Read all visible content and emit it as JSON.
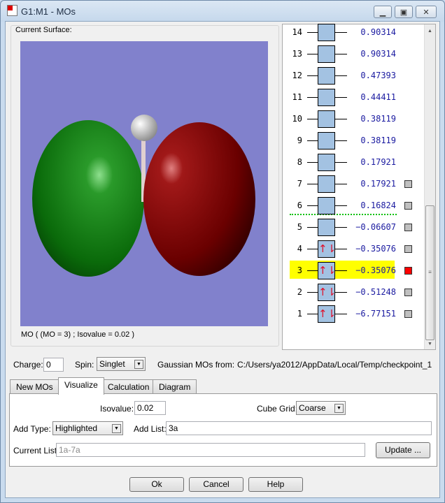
{
  "window": {
    "title": "G1:M1 - MOs",
    "icon": "gaussview-app-icon"
  },
  "surface": {
    "group_label": "Current Surface:",
    "caption": "MO ( (MO = 3) ; Isovalue = 0.02 )",
    "background_color": "#8181cc",
    "positive_lobe_color": "#8b0000",
    "negative_lobe_color": "#0a6a0a"
  },
  "orbitals": [
    {
      "num": "14",
      "energy": "0.90314",
      "occupied": false,
      "checkbox": false
    },
    {
      "num": "13",
      "energy": "0.90314",
      "occupied": false,
      "checkbox": false
    },
    {
      "num": "12",
      "energy": "0.47393",
      "occupied": false,
      "checkbox": false
    },
    {
      "num": "11",
      "energy": "0.44411",
      "occupied": false,
      "checkbox": false
    },
    {
      "num": "10",
      "energy": "0.38119",
      "occupied": false,
      "checkbox": false
    },
    {
      "num": "9",
      "energy": "0.38119",
      "occupied": false,
      "checkbox": false
    },
    {
      "num": "8",
      "energy": "0.17921",
      "occupied": false,
      "checkbox": false
    },
    {
      "num": "7",
      "energy": "0.17921",
      "occupied": false,
      "checkbox": true
    },
    {
      "num": "6",
      "energy": "0.16824",
      "occupied": false,
      "checkbox": true
    },
    {
      "num": "5",
      "energy": "−0.06607",
      "occupied": false,
      "checkbox": true
    },
    {
      "num": "4",
      "energy": "−0.35076",
      "occupied": true,
      "checkbox": true
    },
    {
      "num": "3",
      "energy": "−0.35076",
      "occupied": true,
      "checkbox": true,
      "selected": true
    },
    {
      "num": "2",
      "energy": "−0.51248",
      "occupied": true,
      "checkbox": true
    },
    {
      "num": "1",
      "energy": "−6.77151",
      "occupied": true,
      "checkbox": true
    }
  ],
  "electron_pair_glyph": "↑⇂",
  "colors": {
    "highlight": "#ffff00",
    "selected_checkbox": "#ff0000",
    "homo_lumo_line": "#00c000",
    "energy_text": "#1a1aa0"
  },
  "controls": {
    "charge_label": "Charge:",
    "charge_value": "0",
    "spin_label": "Spin:",
    "spin_value": "Singlet",
    "source_label": "Gaussian MOs from:",
    "source_path": "C:/Users/ya2012/AppData/Local/Temp/checkpoint_1"
  },
  "tabs": [
    "New MOs",
    "Visualize",
    "Calculation",
    "Diagram"
  ],
  "active_tab": "Visualize",
  "visualize": {
    "isovalue_label": "Isovalue:",
    "isovalue": "0.02",
    "cube_grid_label": "Cube Grid:",
    "cube_grid": "Coarse",
    "add_type_label": "Add Type:",
    "add_type": "Highlighted",
    "add_list_label": "Add List:",
    "add_list": "3a",
    "current_list_label": "Current List:",
    "current_list": "1a-7a",
    "update_label": "Update ..."
  },
  "buttons": {
    "ok": "Ok",
    "cancel": "Cancel",
    "help": "Help"
  }
}
